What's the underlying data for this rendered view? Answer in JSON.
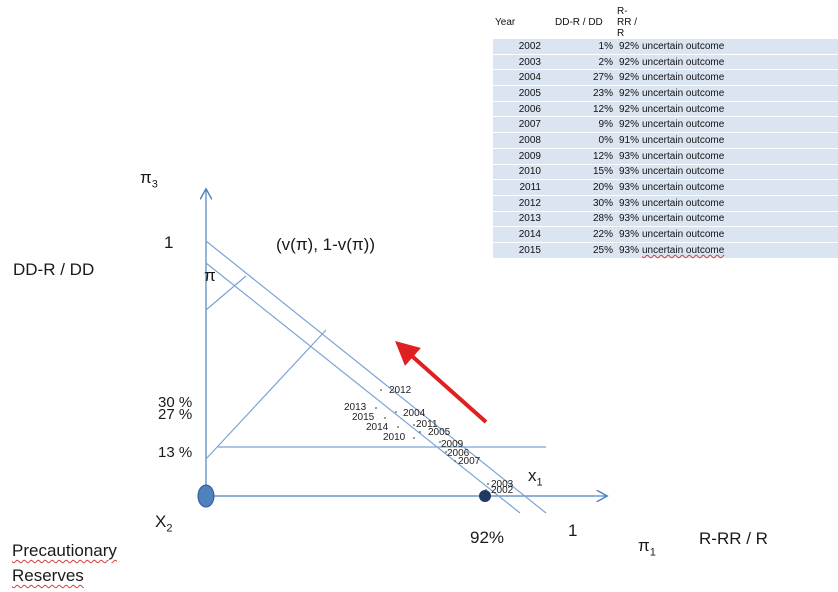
{
  "axes": {
    "pi3": "π",
    "pi3_sub": "3",
    "pi1": "π",
    "pi1_sub": "1",
    "x2": "X",
    "x2_sub": "2",
    "x1": "x",
    "x1_sub": "1",
    "left_label": "DD-R / DD",
    "right_label": "R-RR / R",
    "tick_one_top": "1",
    "tick_one_right": "1",
    "pi_marker": "π",
    "precautionary_line1": "Precautionary",
    "precautionary_line2": "Reserves"
  },
  "annotations": {
    "vpi": "(v(π), 1-v(π))",
    "pct_30": "30 %",
    "pct_27": "27 %",
    "pct_13": "13 %",
    "pct_92": "92%"
  },
  "points": [
    {
      "year": "2012",
      "dd_r": 30
    },
    {
      "year": "2013",
      "dd_r": 28
    },
    {
      "year": "2004",
      "dd_r": 27
    },
    {
      "year": "2015",
      "dd_r": 25
    },
    {
      "year": "2011",
      "dd_r": 20
    },
    {
      "year": "2014",
      "dd_r": 22
    },
    {
      "year": "2005",
      "dd_r": 23
    },
    {
      "year": "2010",
      "dd_r": 15
    },
    {
      "year": "2009",
      "dd_r": 12
    },
    {
      "year": "2006",
      "dd_r": 12
    },
    {
      "year": "2007",
      "dd_r": 9
    },
    {
      "year": "2003",
      "dd_r": 2
    },
    {
      "year": "2002",
      "dd_r": 1
    }
  ],
  "table": {
    "headers": [
      "Year",
      "DD-R / DD",
      "R-RR / R",
      ""
    ],
    "rows": [
      {
        "year": "2002",
        "dd": "1%",
        "rr": "92%",
        "outcome": "uncertain outcome"
      },
      {
        "year": "2003",
        "dd": "2%",
        "rr": "92%",
        "outcome": "uncertain outcome"
      },
      {
        "year": "2004",
        "dd": "27%",
        "rr": "92%",
        "outcome": "uncertain outcome"
      },
      {
        "year": "2005",
        "dd": "23%",
        "rr": "92%",
        "outcome": "uncertain outcome"
      },
      {
        "year": "2006",
        "dd": "12%",
        "rr": "92%",
        "outcome": "uncertain outcome"
      },
      {
        "year": "2007",
        "dd": "9%",
        "rr": "92%",
        "outcome": "uncertain outcome"
      },
      {
        "year": "2008",
        "dd": "0%",
        "rr": "91%",
        "outcome": "uncertain outcome"
      },
      {
        "year": "2009",
        "dd": "12%",
        "rr": "93%",
        "outcome": "uncertain outcome"
      },
      {
        "year": "2010",
        "dd": "15%",
        "rr": "93%",
        "outcome": "uncertain outcome"
      },
      {
        "year": "2011",
        "dd": "20%",
        "rr": "93%",
        "outcome": "uncertain outcome"
      },
      {
        "year": "2012",
        "dd": "30%",
        "rr": "93%",
        "outcome": "uncertain outcome"
      },
      {
        "year": "2013",
        "dd": "28%",
        "rr": "93%",
        "outcome": "uncertain outcome"
      },
      {
        "year": "2014",
        "dd": "22%",
        "rr": "93%",
        "outcome": "uncertain outcome"
      },
      {
        "year": "2015",
        "dd": "25%",
        "rr": "93%",
        "outcome": "uncertain outcome"
      }
    ]
  },
  "colors": {
    "axis": "#4f81bd",
    "lines": "#7ba3d3",
    "arrow": "#e02020",
    "origin_dot": "#4f81bd",
    "point_dot": "#1f3864",
    "table_row": "#dbe4f1"
  }
}
